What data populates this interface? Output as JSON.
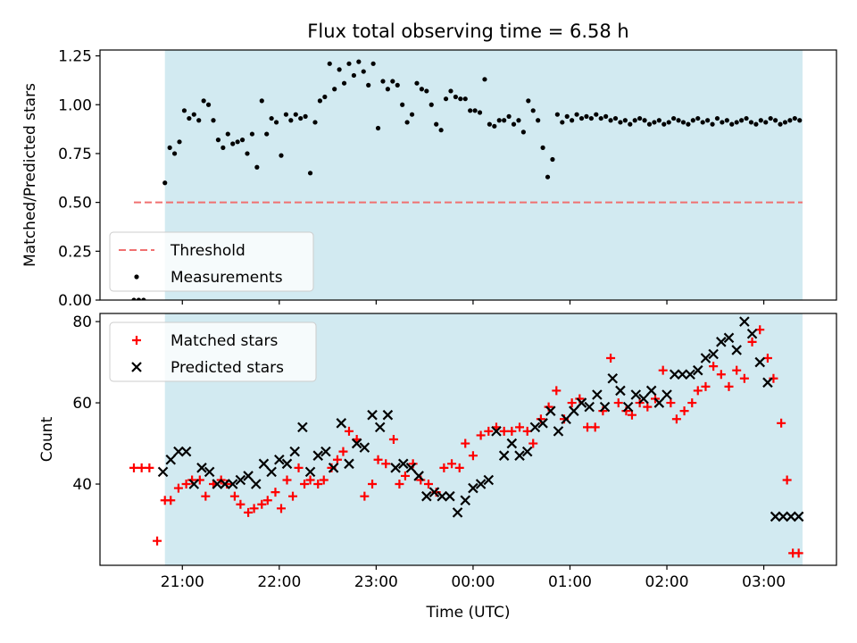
{
  "chart_data": {
    "title": "Flux total observing time = 6.58 h",
    "xlabel": "Time (UTC)",
    "x_unit": "hours since 20:00 UTC",
    "x_ticks": [
      {
        "value": 1,
        "label": "21:00"
      },
      {
        "value": 2,
        "label": "22:00"
      },
      {
        "value": 3,
        "label": "23:00"
      },
      {
        "value": 4,
        "label": "00:00"
      },
      {
        "value": 5,
        "label": "01:00"
      },
      {
        "value": 6,
        "label": "02:00"
      },
      {
        "value": 7,
        "label": "03:00"
      }
    ],
    "xlim": [
      0.15,
      7.75
    ],
    "observing_window": {
      "start": 0.82,
      "end": 7.4,
      "color": "#add8e6"
    },
    "panels": [
      {
        "type": "scatter",
        "ylabel": "Matched/Predicted stars",
        "ylim": [
          0,
          1.28
        ],
        "y_ticks": [
          "0.00",
          "0.25",
          "0.50",
          "0.75",
          "1.00",
          "1.25"
        ],
        "y_tick_values": [
          0,
          0.25,
          0.5,
          0.75,
          1.0,
          1.25
        ],
        "legend": {
          "position": "lower-left",
          "entries": [
            "Threshold",
            "Measurements"
          ]
        },
        "threshold": {
          "name": "Threshold",
          "y": 0.5,
          "x_start": 0.5,
          "x_end": 7.4,
          "color": "#f07070"
        },
        "series": [
          {
            "name": "Measurements",
            "color": "#000000",
            "x": [
              0.5,
              0.55,
              0.6,
              0.82,
              0.87,
              0.92,
              0.97,
              1.02,
              1.07,
              1.12,
              1.17,
              1.22,
              1.27,
              1.32,
              1.37,
              1.42,
              1.47,
              1.52,
              1.57,
              1.62,
              1.67,
              1.72,
              1.77,
              1.82,
              1.87,
              1.92,
              1.97,
              2.02,
              2.07,
              2.12,
              2.17,
              2.22,
              2.27,
              2.32,
              2.37,
              2.42,
              2.47,
              2.52,
              2.57,
              2.62,
              2.67,
              2.72,
              2.77,
              2.82,
              2.87,
              2.92,
              2.97,
              3.02,
              3.07,
              3.12,
              3.17,
              3.22,
              3.27,
              3.32,
              3.37,
              3.42,
              3.47,
              3.52,
              3.57,
              3.62,
              3.67,
              3.72,
              3.77,
              3.82,
              3.87,
              3.92,
              3.97,
              4.02,
              4.07,
              4.12,
              4.17,
              4.22,
              4.27,
              4.32,
              4.37,
              4.42,
              4.47,
              4.52,
              4.57,
              4.62,
              4.67,
              4.72,
              4.77,
              4.82,
              4.87,
              4.92,
              4.97,
              5.02,
              5.07,
              5.12,
              5.17,
              5.22,
              5.27,
              5.32,
              5.37,
              5.42,
              5.47,
              5.52,
              5.57,
              5.62,
              5.67,
              5.72,
              5.77,
              5.82,
              5.87,
              5.92,
              5.97,
              6.02,
              6.07,
              6.12,
              6.17,
              6.22,
              6.27,
              6.32,
              6.37,
              6.42,
              6.47,
              6.52,
              6.57,
              6.62,
              6.67,
              6.72,
              6.77,
              6.82,
              6.87,
              6.92,
              6.97,
              7.02,
              7.07,
              7.12,
              7.17,
              7.22,
              7.27,
              7.32,
              7.37
            ],
            "y": [
              0.0,
              0.0,
              0.0,
              0.6,
              0.78,
              0.75,
              0.81,
              0.97,
              0.93,
              0.95,
              0.92,
              1.02,
              1.0,
              0.92,
              0.82,
              0.78,
              0.85,
              0.8,
              0.81,
              0.82,
              0.75,
              0.85,
              0.68,
              1.02,
              0.85,
              0.93,
              0.91,
              0.74,
              0.95,
              0.92,
              0.95,
              0.93,
              0.94,
              0.65,
              0.91,
              1.02,
              1.04,
              1.21,
              1.08,
              1.18,
              1.11,
              1.21,
              1.15,
              1.22,
              1.17,
              1.1,
              1.21,
              0.88,
              1.12,
              1.08,
              1.12,
              1.1,
              1.0,
              0.91,
              0.95,
              1.11,
              1.08,
              1.07,
              1.0,
              0.9,
              0.87,
              1.03,
              1.07,
              1.04,
              1.03,
              1.03,
              0.97,
              0.97,
              0.96,
              1.13,
              0.9,
              0.89,
              0.92,
              0.92,
              0.94,
              0.9,
              0.92,
              0.86,
              1.02,
              0.97,
              0.92,
              0.78,
              0.63,
              0.72,
              0.95,
              0.91,
              0.94,
              0.92,
              0.95,
              0.93,
              0.94,
              0.93,
              0.95,
              0.93,
              0.94,
              0.92,
              0.93,
              0.91,
              0.92,
              0.9,
              0.92,
              0.93,
              0.92,
              0.9,
              0.91,
              0.92,
              0.9,
              0.91,
              0.93,
              0.92,
              0.91,
              0.9,
              0.92,
              0.93,
              0.91,
              0.92,
              0.9,
              0.93,
              0.91,
              0.92,
              0.9,
              0.91,
              0.92,
              0.93,
              0.91,
              0.9,
              0.92,
              0.91,
              0.93,
              0.92,
              0.9,
              0.91,
              0.92,
              0.93,
              0.92
            ]
          }
        ]
      },
      {
        "type": "scatter",
        "ylabel": "Count",
        "ylim": [
          20,
          82
        ],
        "y_ticks": [
          "40",
          "60",
          "80"
        ],
        "y_tick_values": [
          40,
          60,
          80
        ],
        "legend": {
          "position": "upper-left",
          "entries": [
            "Matched stars",
            "Predicted stars"
          ]
        },
        "series": [
          {
            "name": "Matched stars",
            "marker": "+",
            "color": "#ff0000",
            "x": [
              0.5,
              0.58,
              0.66,
              0.74,
              0.82,
              0.88,
              0.96,
              1.04,
              1.1,
              1.18,
              1.24,
              1.32,
              1.4,
              1.46,
              1.54,
              1.6,
              1.68,
              1.74,
              1.82,
              1.88,
              1.96,
              2.02,
              2.08,
              2.14,
              2.2,
              2.26,
              2.32,
              2.4,
              2.46,
              2.54,
              2.6,
              2.66,
              2.72,
              2.8,
              2.88,
              2.96,
              3.02,
              3.1,
              3.18,
              3.24,
              3.3,
              3.38,
              3.46,
              3.54,
              3.62,
              3.7,
              3.78,
              3.86,
              3.92,
              4.0,
              4.08,
              4.16,
              4.24,
              4.32,
              4.4,
              4.48,
              4.56,
              4.62,
              4.7,
              4.78,
              4.86,
              4.94,
              5.02,
              5.1,
              5.18,
              5.26,
              5.34,
              5.42,
              5.5,
              5.58,
              5.64,
              5.72,
              5.8,
              5.88,
              5.96,
              6.04,
              6.1,
              6.18,
              6.26,
              6.32,
              6.4,
              6.48,
              6.56,
              6.64,
              6.72,
              6.8,
              6.88,
              6.96,
              7.04,
              7.1,
              7.18,
              7.24,
              7.3,
              7.36
            ],
            "y": [
              44,
              44,
              44,
              26,
              36,
              36,
              39,
              40,
              41,
              41,
              37,
              40,
              41,
              40,
              37,
              35,
              33,
              34,
              35,
              36,
              38,
              34,
              41,
              37,
              44,
              40,
              41,
              40,
              41,
              44,
              46,
              48,
              53,
              51,
              37,
              40,
              46,
              45,
              51,
              40,
              42,
              45,
              41,
              40,
              38,
              44,
              45,
              44,
              50,
              47,
              52,
              53,
              54,
              53,
              53,
              54,
              53,
              50,
              56,
              59,
              63,
              56,
              60,
              61,
              54,
              54,
              58,
              71,
              60,
              58,
              57,
              60,
              59,
              61,
              68,
              60,
              56,
              58,
              60,
              63,
              64,
              69,
              67,
              64,
              68,
              66,
              75,
              78,
              71,
              66,
              55,
              41,
              23,
              23
            ]
          },
          {
            "name": "Predicted stars",
            "marker": "x",
            "color": "#000000",
            "x": [
              0.8,
              0.88,
              0.96,
              1.04,
              1.12,
              1.2,
              1.28,
              1.36,
              1.44,
              1.52,
              1.6,
              1.68,
              1.76,
              1.84,
              1.92,
              2.0,
              2.08,
              2.16,
              2.24,
              2.32,
              2.4,
              2.48,
              2.56,
              2.64,
              2.72,
              2.8,
              2.88,
              2.96,
              3.04,
              3.12,
              3.2,
              3.28,
              3.36,
              3.44,
              3.52,
              3.6,
              3.68,
              3.76,
              3.84,
              3.92,
              4.0,
              4.08,
              4.16,
              4.24,
              4.32,
              4.4,
              4.48,
              4.56,
              4.64,
              4.72,
              4.8,
              4.88,
              4.96,
              5.04,
              5.12,
              5.2,
              5.28,
              5.36,
              5.44,
              5.52,
              5.6,
              5.68,
              5.76,
              5.84,
              5.92,
              6.0,
              6.08,
              6.16,
              6.24,
              6.32,
              6.4,
              6.48,
              6.56,
              6.64,
              6.72,
              6.8,
              6.88,
              6.96,
              7.04,
              7.12,
              7.2,
              7.28,
              7.36
            ],
            "y": [
              43,
              46,
              48,
              48,
              40,
              44,
              43,
              40,
              40,
              40,
              41,
              42,
              40,
              45,
              43,
              46,
              45,
              48,
              54,
              43,
              47,
              48,
              44,
              55,
              45,
              50,
              49,
              57,
              54,
              57,
              44,
              45,
              44,
              42,
              37,
              38,
              37,
              37,
              33,
              36,
              39,
              40,
              41,
              53,
              47,
              50,
              47,
              48,
              54,
              55,
              58,
              53,
              56,
              58,
              60,
              59,
              62,
              59,
              66,
              63,
              59,
              62,
              61,
              63,
              60,
              62,
              67,
              67,
              67,
              68,
              71,
              72,
              75,
              76,
              73,
              80,
              77,
              70,
              65,
              32,
              32,
              32,
              32
            ]
          }
        ]
      }
    ]
  }
}
